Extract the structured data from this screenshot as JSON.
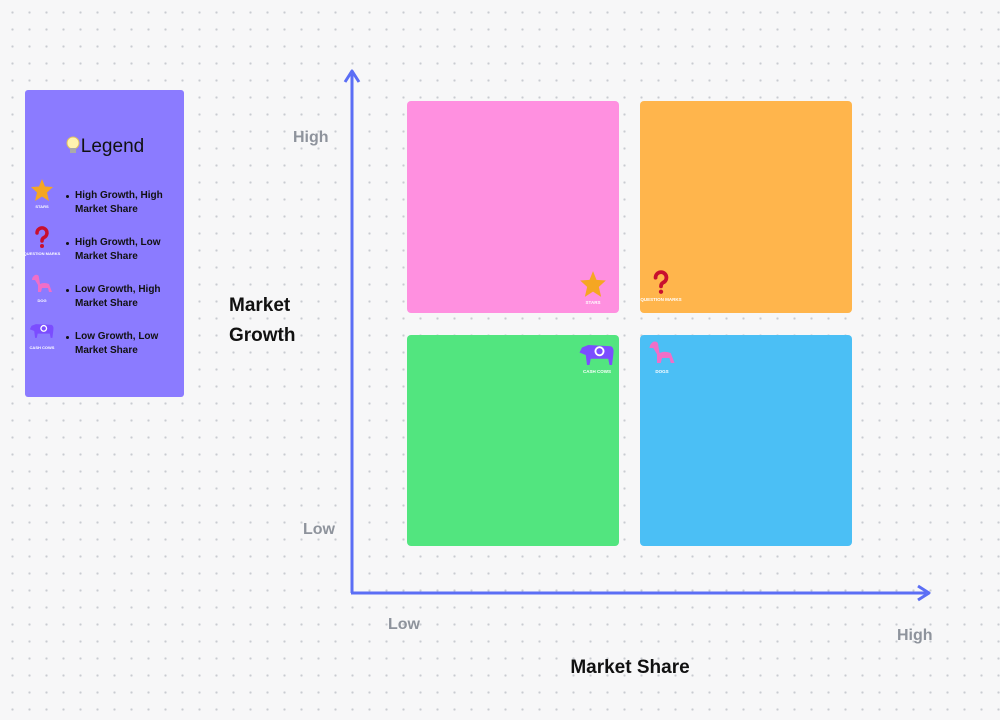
{
  "legend": {
    "title": "Legend",
    "items": [
      {
        "icon_label": "STARS",
        "text": "High Growth, High Market Share"
      },
      {
        "icon_label": "QUESTION MARKS",
        "text": "High Growth, Low Market Share"
      },
      {
        "icon_label": "DOG",
        "text": "Low Growth, High Market Share"
      },
      {
        "icon_label": "CASH COWS",
        "text": "Low Growth, Low Market Share"
      }
    ]
  },
  "axes": {
    "y": {
      "title": "Market Growth",
      "high": "High",
      "low": "Low"
    },
    "x": {
      "title": "Market Share",
      "low": "Low",
      "high": "High"
    }
  },
  "quadrants": [
    {
      "label": "STARS"
    },
    {
      "label": "QUESTION MARKS"
    },
    {
      "label": "CASH COWS"
    },
    {
      "label": "DOGS"
    }
  ]
}
